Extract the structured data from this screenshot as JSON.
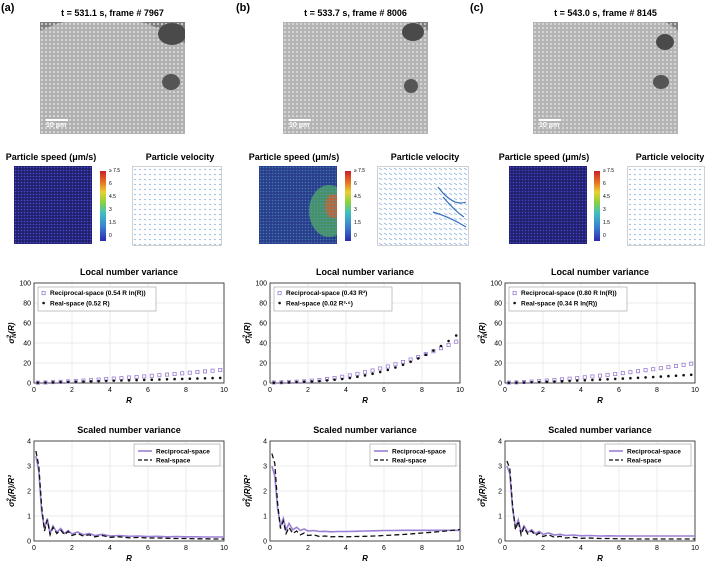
{
  "panels": [
    {
      "label": "(a)",
      "title": "t = 531.1 s, frame # 7967",
      "scalebar": "10 μm",
      "speed_title": "Particle speed (μm/s)",
      "velocity_title": "Particle velocity"
    },
    {
      "label": "(b)",
      "title": "t = 533.7 s, frame # 8006",
      "scalebar": "10 μm",
      "speed_title": "Particle speed (μm/s)",
      "velocity_title": "Particle velocity"
    },
    {
      "label": "(c)",
      "title": "t = 543.0 s, frame # 8145",
      "scalebar": "10 μm",
      "speed_title": "Particle speed (μm/s)",
      "velocity_title": "Particle velocity"
    }
  ],
  "colorbar": {
    "ticks": [
      "≥ 7.5",
      "6",
      "4.5",
      "3",
      "1.5",
      "0"
    ]
  },
  "colors": {
    "reciprocal": "#9b7fd6",
    "real": "#111111"
  },
  "chart_data": [
    {
      "type": "scatter",
      "title": "Local number variance",
      "xlabel": "R",
      "ylabel": "σ²_N(R)",
      "xlim": [
        0,
        10
      ],
      "ylim": [
        0,
        100
      ],
      "xticks": [
        0,
        2,
        4,
        6,
        8,
        10
      ],
      "yticks": [
        0,
        20,
        40,
        60,
        80,
        100
      ],
      "series": [
        {
          "name": "Reciprocal-space (0.54 R ln(R))",
          "kind": "reciprocal",
          "expr": "0.54 R ln(R)"
        },
        {
          "name": "Real-space (0.52 R)",
          "kind": "real",
          "expr": "0.52 R"
        }
      ],
      "x": [
        0.2,
        0.6,
        1,
        1.4,
        1.8,
        2.2,
        2.6,
        3,
        3.4,
        3.8,
        4.2,
        4.6,
        5,
        5.4,
        5.8,
        6.2,
        6.6,
        7,
        7.4,
        7.8,
        8.2,
        8.6,
        9,
        9.4,
        9.8
      ],
      "reciprocal": [
        0.3,
        0.5,
        0.9,
        1.2,
        1.6,
        2,
        2.4,
        2.9,
        3.4,
        3.9,
        4.4,
        4.9,
        5.5,
        6,
        6.6,
        7.2,
        7.8,
        8.4,
        9,
        9.7,
        10.3,
        11,
        11.6,
        12.3,
        13
      ],
      "real": [
        0.3,
        0.5,
        0.7,
        0.9,
        1.1,
        1.3,
        1.5,
        1.7,
        1.9,
        2.1,
        2.3,
        2.5,
        2.7,
        2.9,
        3.1,
        3.3,
        3.5,
        3.7,
        3.9,
        4.1,
        4.3,
        4.5,
        4.7,
        4.9,
        5.1
      ]
    },
    {
      "type": "scatter",
      "title": "Local number variance",
      "xlabel": "R",
      "ylabel": "σ²_N(R)",
      "xlim": [
        0,
        10
      ],
      "ylim": [
        0,
        100
      ],
      "xticks": [
        0,
        2,
        4,
        6,
        8,
        10
      ],
      "yticks": [
        0,
        20,
        40,
        60,
        80,
        100
      ],
      "series": [
        {
          "name": "Reciprocal-space (0.43 R²)",
          "kind": "reciprocal",
          "expr": "0.43 R²"
        },
        {
          "name": "Real-space (0.02 R³·⁶)",
          "kind": "real",
          "expr": "0.02 R³·⁶"
        }
      ],
      "x": [
        0.2,
        0.6,
        1,
        1.4,
        1.8,
        2.2,
        2.6,
        3,
        3.4,
        3.8,
        4.2,
        4.6,
        5,
        5.4,
        5.8,
        6.2,
        6.6,
        7,
        7.4,
        7.8,
        8.2,
        8.6,
        9,
        9.4,
        9.8
      ],
      "reciprocal": [
        0.5,
        0.7,
        1,
        1.3,
        1.7,
        2.3,
        3,
        4,
        5,
        6.2,
        7.6,
        9.1,
        10.8,
        12.5,
        14.5,
        16.5,
        18.7,
        21,
        23.5,
        26,
        28.9,
        31.8,
        34.8,
        38,
        41.3
      ],
      "real": [
        0.3,
        0.5,
        0.7,
        1,
        1.3,
        1.6,
        2,
        2.6,
        3.3,
        4,
        5,
        6.2,
        7.6,
        9.2,
        11,
        13.1,
        15.5,
        18.2,
        21.2,
        24.6,
        28.3,
        32.4,
        37,
        42,
        47.5
      ]
    },
    {
      "type": "scatter",
      "title": "Local number variance",
      "xlabel": "R",
      "ylabel": "σ²_N(R)",
      "xlim": [
        0,
        10
      ],
      "ylim": [
        0,
        100
      ],
      "xticks": [
        0,
        2,
        4,
        6,
        8,
        10
      ],
      "yticks": [
        0,
        20,
        40,
        60,
        80,
        100
      ],
      "series": [
        {
          "name": "Reciprocal-space (0.80 R ln(R))",
          "kind": "reciprocal",
          "expr": "0.80 R ln(R)"
        },
        {
          "name": "Real-space (0.34 R ln(R))",
          "kind": "real",
          "expr": "0.34 R ln(R)"
        }
      ],
      "x": [
        0.2,
        0.6,
        1,
        1.4,
        1.8,
        2.2,
        2.6,
        3,
        3.4,
        3.8,
        4.2,
        4.6,
        5,
        5.4,
        5.8,
        6.2,
        6.6,
        7,
        7.4,
        7.8,
        8.2,
        8.6,
        9,
        9.4,
        9.8
      ],
      "reciprocal": [
        0.4,
        0.6,
        1,
        1.4,
        1.9,
        2.4,
        3,
        3.6,
        4.3,
        5,
        5.7,
        6.5,
        7.3,
        8.1,
        9,
        9.9,
        10.8,
        11.8,
        12.8,
        13.8,
        14.8,
        15.9,
        17,
        18.1,
        19.3
      ],
      "real": [
        0.2,
        0.4,
        0.6,
        0.8,
        1,
        1.3,
        1.5,
        1.8,
        2.1,
        2.4,
        2.7,
        3,
        3.4,
        3.7,
        4.1,
        4.4,
        4.8,
        5.2,
        5.6,
        6,
        6.4,
        6.9,
        7.3,
        7.8,
        8.2
      ]
    },
    {
      "type": "line",
      "title": "Scaled number variance",
      "xlabel": "R",
      "ylabel": "σ²_N(R)/R²",
      "xlim": [
        0,
        10
      ],
      "ylim": [
        0,
        4
      ],
      "xticks": [
        0,
        2,
        4,
        6,
        8,
        10
      ],
      "yticks": [
        0,
        1,
        2,
        3,
        4
      ],
      "series": [
        {
          "name": "Reciprocal-space",
          "kind": "reciprocal"
        },
        {
          "name": "Real-space",
          "kind": "real"
        }
      ],
      "x": [
        0.1,
        0.25,
        0.4,
        0.55,
        0.7,
        0.85,
        1.0,
        1.2,
        1.4,
        1.6,
        1.8,
        2.0,
        2.3,
        2.6,
        2.9,
        3.2,
        3.6,
        4,
        4.5,
        5,
        5.5,
        6,
        6.5,
        7,
        7.5,
        8,
        8.5,
        9,
        9.5,
        10
      ],
      "reciprocal": [
        3.4,
        2.8,
        1.2,
        0.5,
        0.9,
        0.3,
        0.6,
        0.35,
        0.5,
        0.3,
        0.42,
        0.28,
        0.36,
        0.25,
        0.3,
        0.22,
        0.27,
        0.2,
        0.22,
        0.19,
        0.2,
        0.18,
        0.19,
        0.17,
        0.18,
        0.17,
        0.17,
        0.16,
        0.16,
        0.16
      ],
      "real": [
        3.6,
        3.0,
        1.4,
        0.4,
        0.85,
        0.25,
        0.55,
        0.3,
        0.45,
        0.25,
        0.38,
        0.22,
        0.3,
        0.2,
        0.25,
        0.17,
        0.22,
        0.15,
        0.17,
        0.13,
        0.14,
        0.12,
        0.12,
        0.11,
        0.1,
        0.1,
        0.09,
        0.09,
        0.08,
        0.08
      ]
    },
    {
      "type": "line",
      "title": "Scaled number variance",
      "xlabel": "R",
      "ylabel": "σ²_N(R)/R²",
      "xlim": [
        0,
        10
      ],
      "ylim": [
        0,
        4
      ],
      "xticks": [
        0,
        2,
        4,
        6,
        8,
        10
      ],
      "yticks": [
        0,
        1,
        2,
        3,
        4
      ],
      "series": [
        {
          "name": "Reciprocal-space",
          "kind": "reciprocal"
        },
        {
          "name": "Real-space",
          "kind": "real"
        }
      ],
      "x": [
        0.1,
        0.25,
        0.4,
        0.55,
        0.7,
        0.85,
        1.0,
        1.2,
        1.4,
        1.6,
        1.8,
        2.0,
        2.3,
        2.6,
        2.9,
        3.2,
        3.6,
        4,
        4.5,
        5,
        5.5,
        6,
        6.5,
        7,
        7.5,
        8,
        8.5,
        9,
        9.5,
        10
      ],
      "reciprocal": [
        3.0,
        2.6,
        1.3,
        0.6,
        0.9,
        0.45,
        0.7,
        0.45,
        0.55,
        0.42,
        0.48,
        0.4,
        0.42,
        0.38,
        0.39,
        0.37,
        0.38,
        0.38,
        0.39,
        0.4,
        0.41,
        0.42,
        0.42,
        0.43,
        0.43,
        0.43,
        0.43,
        0.43,
        0.43,
        0.43
      ],
      "real": [
        3.5,
        3.1,
        1.5,
        0.5,
        0.8,
        0.3,
        0.55,
        0.3,
        0.4,
        0.25,
        0.32,
        0.22,
        0.25,
        0.18,
        0.2,
        0.17,
        0.18,
        0.17,
        0.18,
        0.19,
        0.2,
        0.22,
        0.24,
        0.26,
        0.29,
        0.32,
        0.35,
        0.38,
        0.42,
        0.46
      ]
    },
    {
      "type": "line",
      "title": "Scaled number variance",
      "xlabel": "R",
      "ylabel": "σ²_N(R)/R²",
      "xlim": [
        0,
        10
      ],
      "ylim": [
        0,
        4
      ],
      "xticks": [
        0,
        2,
        4,
        6,
        8,
        10
      ],
      "yticks": [
        0,
        1,
        2,
        3,
        4
      ],
      "series": [
        {
          "name": "Reciprocal-space",
          "kind": "reciprocal"
        },
        {
          "name": "Real-space",
          "kind": "real"
        }
      ],
      "x": [
        0.1,
        0.25,
        0.4,
        0.55,
        0.7,
        0.85,
        1.0,
        1.2,
        1.4,
        1.6,
        1.8,
        2.0,
        2.3,
        2.6,
        2.9,
        3.2,
        3.6,
        4,
        4.5,
        5,
        5.5,
        6,
        6.5,
        7,
        7.5,
        8,
        8.5,
        9,
        9.5,
        10
      ],
      "reciprocal": [
        3.0,
        2.7,
        1.3,
        0.55,
        0.85,
        0.35,
        0.6,
        0.35,
        0.45,
        0.3,
        0.38,
        0.27,
        0.32,
        0.24,
        0.27,
        0.22,
        0.24,
        0.21,
        0.22,
        0.2,
        0.21,
        0.2,
        0.2,
        0.2,
        0.2,
        0.2,
        0.2,
        0.2,
        0.2,
        0.2
      ],
      "real": [
        3.2,
        2.9,
        1.4,
        0.45,
        0.8,
        0.25,
        0.55,
        0.28,
        0.4,
        0.22,
        0.32,
        0.18,
        0.25,
        0.15,
        0.19,
        0.12,
        0.15,
        0.11,
        0.12,
        0.1,
        0.1,
        0.09,
        0.09,
        0.08,
        0.08,
        0.08,
        0.08,
        0.08,
        0.08,
        0.08
      ]
    }
  ]
}
